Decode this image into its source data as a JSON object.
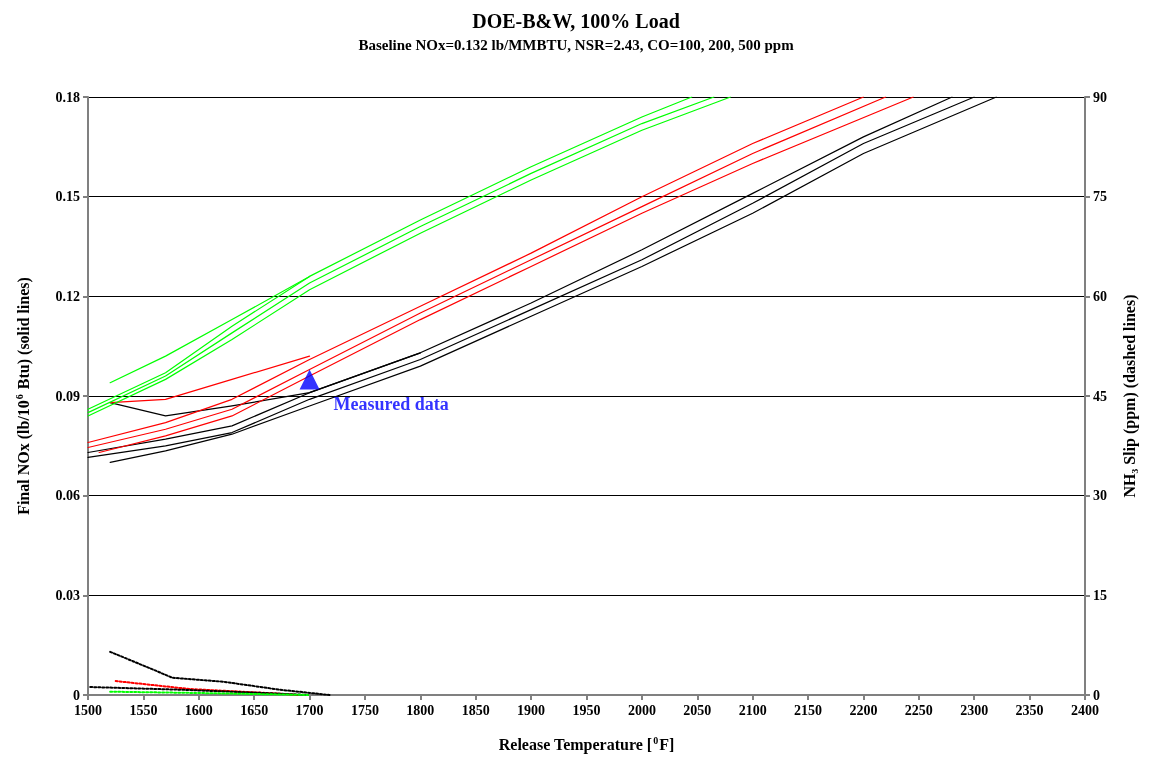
{
  "chart_data": {
    "type": "line",
    "title": "DOE-B&W, 100% Load",
    "subtitle": "Baseline NOx=0.132 lb/MMBTU, NSR=2.43, CO=100, 200, 500 ppm",
    "xlabel": "Release Temperature [$^{0}$F]",
    "ylabel": "Final NOx (lb/10$^{6}$ Btu) (solid lines)",
    "y2label": "NH₃ Slip (ppm) (dashed lines)",
    "xlim": [
      1500,
      2400
    ],
    "xticks": [
      1500,
      1550,
      1600,
      1650,
      1700,
      1750,
      1800,
      1850,
      1900,
      1950,
      2000,
      2050,
      2100,
      2150,
      2200,
      2250,
      2300,
      2350,
      2400
    ],
    "ylim": [
      0,
      0.18
    ],
    "yticks": [
      0,
      0.03,
      0.06,
      0.09,
      0.12,
      0.15,
      0.18
    ],
    "y2lim": [
      0,
      90
    ],
    "y2ticks": [
      0,
      15,
      30,
      45,
      60,
      75,
      90
    ],
    "grid": "y",
    "legend": false,
    "marker": "none",
    "line_style": "solid",
    "series": [
      {
        "color": "#000000",
        "x": [
          1500,
          1570,
          1630,
          1700,
          1800,
          1900,
          2000,
          2100,
          2200,
          2280
        ],
        "values": [
          0.073,
          0.077,
          0.081,
          0.091,
          0.103,
          0.118,
          0.134,
          0.151,
          0.168,
          0.18
        ]
      },
      {
        "color": "#000000",
        "x": [
          1500,
          1570,
          1630,
          1700,
          1800,
          1900,
          2000,
          2100,
          2200,
          2300
        ],
        "values": [
          0.0715,
          0.075,
          0.079,
          0.089,
          0.101,
          0.116,
          0.131,
          0.148,
          0.166,
          0.18
        ]
      },
      {
        "color": "#000000",
        "x": [
          1520,
          1570,
          1630,
          1700,
          1800,
          1900,
          2000,
          2100,
          2200,
          2320
        ],
        "values": [
          0.07,
          0.0735,
          0.0785,
          0.087,
          0.099,
          0.114,
          0.129,
          0.145,
          0.163,
          0.18
        ]
      },
      {
        "color": "#000000",
        "x": [
          1520,
          1570,
          1630,
          1700,
          1800
        ],
        "values": [
          0.088,
          0.084,
          0.087,
          0.091,
          0.103
        ]
      },
      {
        "color": "#ff0000",
        "x": [
          1500,
          1570,
          1630,
          1700,
          1800,
          1900,
          2000,
          2100,
          2200
        ],
        "values": [
          0.076,
          0.082,
          0.089,
          0.101,
          0.117,
          0.133,
          0.15,
          0.166,
          0.18
        ]
      },
      {
        "color": "#ff0000",
        "x": [
          1500,
          1570,
          1630,
          1700,
          1800,
          1900,
          2000,
          2100,
          2220
        ],
        "values": [
          0.0745,
          0.08,
          0.086,
          0.098,
          0.115,
          0.131,
          0.147,
          0.163,
          0.18
        ]
      },
      {
        "color": "#ff0000",
        "x": [
          1510,
          1570,
          1630,
          1700,
          1800,
          1900,
          2000,
          2100,
          2245
        ],
        "values": [
          0.073,
          0.078,
          0.084,
          0.096,
          0.113,
          0.129,
          0.145,
          0.16,
          0.18
        ]
      },
      {
        "color": "#ff0000",
        "x": [
          1520,
          1570,
          1630,
          1700
        ],
        "values": [
          0.088,
          0.089,
          0.095,
          0.102
        ]
      },
      {
        "color": "#00ff00",
        "x": [
          1500,
          1570,
          1630,
          1700,
          1800,
          1900,
          2000,
          2045
        ],
        "values": [
          0.086,
          0.097,
          0.111,
          0.126,
          0.143,
          0.159,
          0.174,
          0.18
        ]
      },
      {
        "color": "#00ff00",
        "x": [
          1500,
          1570,
          1630,
          1700,
          1800,
          1900,
          2000,
          2065
        ],
        "values": [
          0.085,
          0.096,
          0.109,
          0.124,
          0.141,
          0.157,
          0.172,
          0.18
        ]
      },
      {
        "color": "#00ff00",
        "x": [
          1500,
          1570,
          1630,
          1700,
          1800,
          1900,
          2000,
          2080
        ],
        "values": [
          0.084,
          0.095,
          0.107,
          0.122,
          0.139,
          0.155,
          0.17,
          0.18
        ]
      },
      {
        "color": "#00ff00",
        "x": [
          1520,
          1570,
          1630,
          1700
        ],
        "values": [
          0.094,
          0.102,
          0.113,
          0.126
        ]
      },
      {
        "color": "#000000",
        "axis": "y2",
        "line_style": "dotted",
        "x": [
          1520,
          1562,
          1576,
          1622,
          1673,
          1718
        ],
        "values": [
          6.5,
          3.6,
          2.6,
          2.0,
          0.8,
          0
        ]
      },
      {
        "color": "#ff0000",
        "axis": "y2",
        "line_style": "dotted",
        "x": [
          1525,
          1592,
          1673,
          1690
        ],
        "values": [
          2.1,
          0.9,
          0.2,
          0
        ]
      },
      {
        "color": "#000000",
        "axis": "y2",
        "line_style": "dotted",
        "x": [
          1502,
          1583,
          1659,
          1700
        ],
        "values": [
          1.2,
          0.8,
          0.3,
          0
        ]
      },
      {
        "color": "#00ff00",
        "axis": "y2",
        "line_style": "dotted",
        "x": [
          1520,
          1600,
          1700
        ],
        "values": [
          0.5,
          0.3,
          0
        ]
      },
      {
        "type": "scatter",
        "name": "Measured data",
        "color": "#0000ff",
        "marker": "triangle",
        "x": [
          1700
        ],
        "values": [
          0.095
        ]
      }
    ]
  }
}
